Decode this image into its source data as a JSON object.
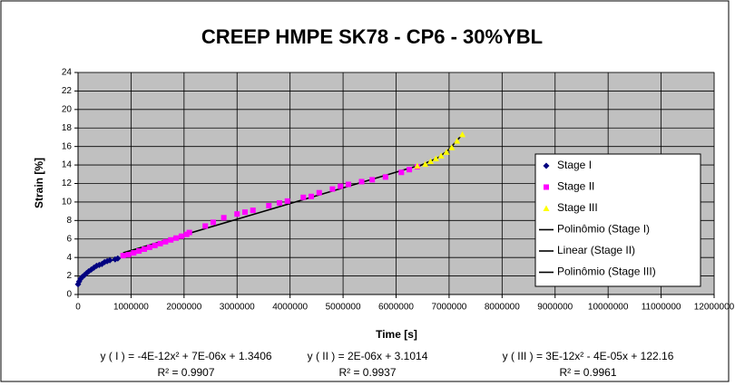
{
  "chart_data": {
    "type": "scatter",
    "title": "CREEP HMPE SK78 - CP6 - 30%YBL",
    "x_label": "Time [s]",
    "y_label": "Strain [%]",
    "xlim": [
      0,
      12000000
    ],
    "xticks": [
      0,
      1000000,
      2000000,
      3000000,
      4000000,
      5000000,
      6000000,
      7000000,
      8000000,
      9000000,
      10000000,
      11000000,
      12000000
    ],
    "ylim": [
      0,
      24
    ],
    "yticks": [
      0,
      2,
      4,
      6,
      8,
      10,
      12,
      14,
      16,
      18,
      20,
      22,
      24
    ],
    "grid": true,
    "legend": "right",
    "series": [
      {
        "name": "Stage I",
        "color": "#000080",
        "marker": "diamond",
        "x": [
          0,
          20000,
          50000,
          80000,
          120000,
          160000,
          200000,
          250000,
          300000,
          350000,
          400000,
          450000,
          500000,
          550000,
          600000,
          700000,
          750000
        ],
        "values": [
          1.1,
          1.4,
          1.7,
          1.9,
          2.1,
          2.3,
          2.5,
          2.7,
          2.9,
          3.1,
          3.2,
          3.3,
          3.5,
          3.6,
          3.7,
          3.8,
          3.9
        ]
      },
      {
        "name": "Stage II",
        "color": "#ff00ff",
        "marker": "square",
        "x": [
          850000,
          950000,
          1050000,
          1150000,
          1250000,
          1350000,
          1450000,
          1550000,
          1650000,
          1750000,
          1850000,
          1950000,
          2050000,
          2100000,
          2400000,
          2550000,
          2750000,
          3000000,
          3150000,
          3300000,
          3600000,
          3800000,
          3950000,
          4250000,
          4400000,
          4550000,
          4800000,
          4950000,
          5100000,
          5350000,
          5550000,
          5800000,
          6100000,
          6250000,
          6400000
        ],
        "values": [
          4.2,
          4.3,
          4.5,
          4.7,
          4.9,
          5.1,
          5.3,
          5.5,
          5.7,
          5.9,
          6.1,
          6.3,
          6.5,
          6.7,
          7.4,
          7.8,
          8.3,
          8.7,
          8.9,
          9.1,
          9.6,
          9.9,
          10.1,
          10.5,
          10.6,
          11.0,
          11.4,
          11.7,
          11.9,
          12.2,
          12.4,
          12.7,
          13.2,
          13.5,
          13.8
        ]
      },
      {
        "name": "Stage III",
        "color": "#ffff00",
        "marker": "triangle",
        "x": [
          6400000,
          6550000,
          6650000,
          6750000,
          6850000,
          6950000,
          7050000,
          7150000,
          7250000
        ],
        "values": [
          13.9,
          14.1,
          14.4,
          14.7,
          15.0,
          15.4,
          15.9,
          16.6,
          17.3
        ]
      },
      {
        "name": "Polinômio (Stage I)",
        "color": "#000000",
        "marker": "line",
        "x": [
          0,
          200000,
          400000,
          600000,
          750000
        ],
        "values": [
          1.3,
          2.4,
          3.1,
          3.6,
          3.9
        ]
      },
      {
        "name": "Linear (Stage II)",
        "color": "#000000",
        "marker": "line",
        "x": [
          850000,
          6400000
        ],
        "values": [
          4.5,
          13.9
        ]
      },
      {
        "name": "Polinômio (Stage III)",
        "color": "#000000",
        "marker": "line",
        "x": [
          6400000,
          6800000,
          7000000,
          7250000
        ],
        "values": [
          13.8,
          14.8,
          15.7,
          17.3
        ]
      }
    ],
    "annotations": [
      {
        "equation": "y ( I ) = -4E-12x² + 7E-06x + 1.3406",
        "r2": "R² = 0.9907"
      },
      {
        "equation": "y ( II ) = 2E-06x + 3.1014",
        "r2": "R² = 0.9937"
      },
      {
        "equation": "y ( III ) = 3E-12x² - 4E-05x + 122.16",
        "r2": "R² = 0.9961"
      }
    ]
  }
}
